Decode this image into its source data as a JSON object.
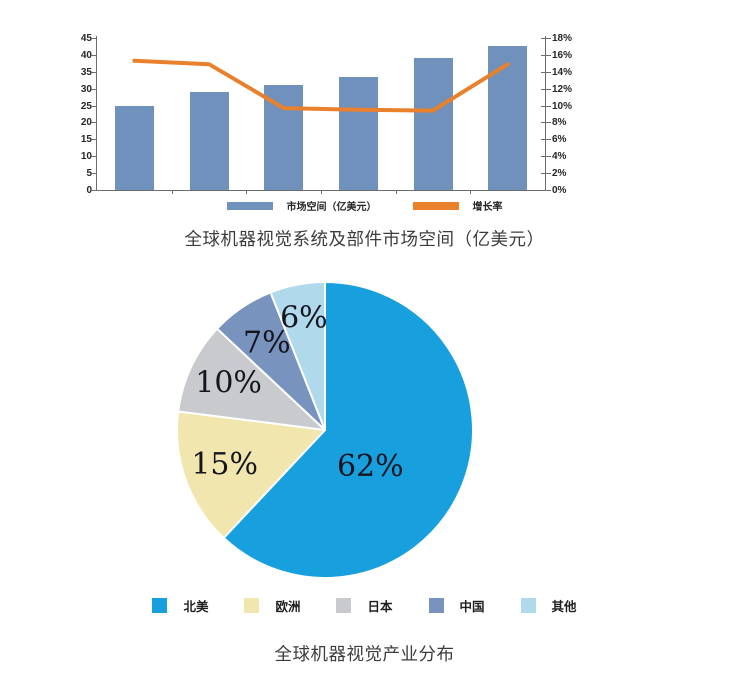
{
  "chart_data": [
    {
      "type": "bar",
      "subtype": "bar-line-combo",
      "title": "全球机器视觉系统及部件市场空间（亿美元）",
      "categories": [
        "",
        "",
        "",
        "",
        "",
        ""
      ],
      "series": [
        {
          "name": "市场空间（亿美元）",
          "kind": "bar",
          "axis": "left",
          "color": "#7191bd",
          "values": [
            25,
            29,
            31,
            33.5,
            39,
            42.5
          ]
        },
        {
          "name": "增长率",
          "kind": "line",
          "axis": "right",
          "color": "#e8802c",
          "values": [
            15.3,
            14.9,
            9.7,
            9.5,
            9.4,
            14.9
          ]
        }
      ],
      "left_axis": {
        "min": 0,
        "max": 45,
        "step": 5,
        "tick_labels": [
          "0",
          "5",
          "10",
          "15",
          "20",
          "25",
          "30",
          "35",
          "40",
          "45"
        ]
      },
      "right_axis": {
        "min": 0,
        "max": 18,
        "step": 2,
        "tick_labels": [
          "0%",
          "2%",
          "4%",
          "6%",
          "8%",
          "10%",
          "12%",
          "14%",
          "16%",
          "18%"
        ]
      },
      "legend_position": "bottom",
      "grid": false
    },
    {
      "type": "pie",
      "title": "全球机器视觉产业分布",
      "start_angle_deg": 0,
      "direction": "clockwise",
      "legend_position": "bottom",
      "slices": [
        {
          "label": "北美",
          "value": 62,
          "display": "62%",
          "color": "#189fdd",
          "label_radius": 0.4,
          "label_angle_deg": 130
        },
        {
          "label": "欧洲",
          "value": 15,
          "display": "15%",
          "color": "#f0e6ae",
          "label_radius": 0.72
        },
        {
          "label": "日本",
          "value": 10,
          "display": "10%",
          "color": "#c8cacd",
          "label_radius": 0.72
        },
        {
          "label": "中国",
          "value": 7,
          "display": "7%",
          "color": "#7793be",
          "label_radius": 0.7
        },
        {
          "label": "其他",
          "value": 6,
          "display": "6%",
          "color": "#b0daec",
          "label_radius": 0.76
        }
      ]
    }
  ]
}
